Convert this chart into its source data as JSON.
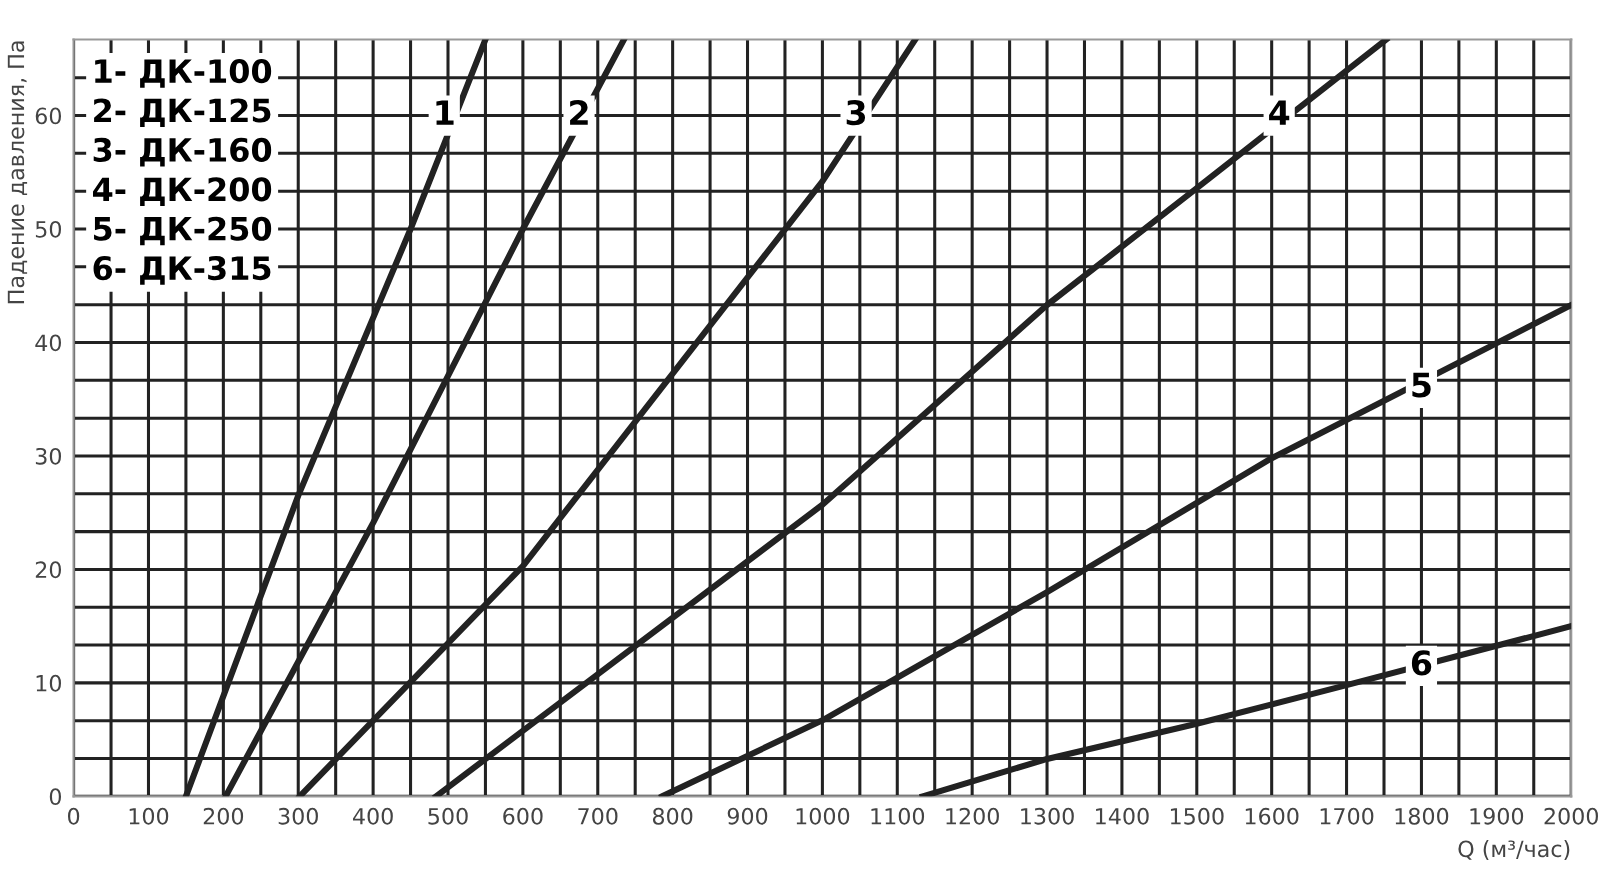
{
  "chart_data": {
    "type": "line",
    "xlabel": "Q (м³/час)",
    "ylabel": "Падение давления, Па",
    "xlim": [
      0,
      2000
    ],
    "ylim": [
      0,
      66.7
    ],
    "xticks": [
      0,
      {
        "value": 50,
        "label": null
      },
      100,
      {
        "value": 150,
        "label": null
      },
      200,
      {
        "value": 250,
        "label": null
      },
      300,
      {
        "value": 350,
        "label": null
      },
      400,
      {
        "value": 450,
        "label": null
      },
      500,
      {
        "value": 550,
        "label": null
      },
      600,
      {
        "value": 650,
        "label": null
      },
      700,
      {
        "value": 750,
        "label": null
      },
      800,
      {
        "value": 850,
        "label": null
      },
      900,
      {
        "value": 950,
        "label": null
      },
      1000,
      {
        "value": 1050,
        "label": null
      },
      1100,
      {
        "value": 1150,
        "label": null
      },
      1200,
      {
        "value": 1250,
        "label": null
      },
      1300,
      {
        "value": 1350,
        "label": null
      },
      1400,
      {
        "value": 1450,
        "label": null
      },
      1500,
      {
        "value": 1550,
        "label": null
      },
      1600,
      {
        "value": 1650,
        "label": null
      },
      1700,
      {
        "value": 1750,
        "label": null
      },
      1800,
      {
        "value": 1850,
        "label": null
      },
      1900,
      {
        "value": 1950,
        "label": null
      },
      2000
    ],
    "yticks": [
      0,
      {
        "value": 3.33,
        "label": null
      },
      {
        "value": 6.67,
        "label": null
      },
      10,
      {
        "value": 13.33,
        "label": null
      },
      {
        "value": 16.67,
        "label": null
      },
      20,
      {
        "value": 23.33,
        "label": null
      },
      {
        "value": 26.67,
        "label": null
      },
      30,
      {
        "value": 33.33,
        "label": null
      },
      {
        "value": 36.67,
        "label": null
      },
      40,
      {
        "value": 43.33,
        "label": null
      },
      {
        "value": 46.67,
        "label": null
      },
      50,
      {
        "value": 53.33,
        "label": null
      },
      {
        "value": 56.67,
        "label": null
      },
      60,
      {
        "value": 63.33,
        "label": null
      }
    ],
    "grid": true,
    "marker": "none",
    "line_style": "solid",
    "series": [
      {
        "color": "#222222",
        "x": [
          150,
          300,
          450,
          550
        ],
        "values": [
          0,
          26.5,
          50,
          66.7
        ]
      },
      {
        "color": "#222222",
        "x": [
          203,
          400,
          600,
          735
        ],
        "values": [
          0,
          24.1,
          50,
          66.7
        ]
      },
      {
        "color": "#222222",
        "x": [
          302,
          600,
          1000,
          1124
        ],
        "values": [
          0,
          20.3,
          54.2,
          66.7
        ]
      },
      {
        "color": "#222222",
        "x": [
          484,
          1000,
          1300,
          1500,
          1753
        ],
        "values": [
          0,
          25.7,
          43.3,
          53.6,
          66.7
        ]
      },
      {
        "color": "#222222",
        "x": [
          786,
          1000,
          1300,
          1600,
          2000
        ],
        "values": [
          0,
          6.7,
          18.0,
          29.8,
          43.3
        ]
      },
      {
        "color": "#222222",
        "x": [
          1134,
          1300,
          1500,
          1700,
          2000
        ],
        "values": [
          0,
          3.3,
          6.4,
          9.8,
          15.0
        ]
      }
    ],
    "annotations": [
      {
        "text": "1",
        "x": 495,
        "y": 60
      },
      {
        "text": "2",
        "x": 675,
        "y": 60
      },
      {
        "text": "3",
        "x": 1045,
        "y": 60
      },
      {
        "text": "4",
        "x": 1610,
        "y": 60
      },
      {
        "text": "5",
        "x": 1800,
        "y": 36
      },
      {
        "text": "6",
        "x": 1800,
        "y": 11.5
      },
      "1- ДК-100",
      "2- ДК-125",
      "3- ДК-160",
      "4- ДК-200",
      "5- ДК-250",
      "6- ДК-315"
    ]
  }
}
